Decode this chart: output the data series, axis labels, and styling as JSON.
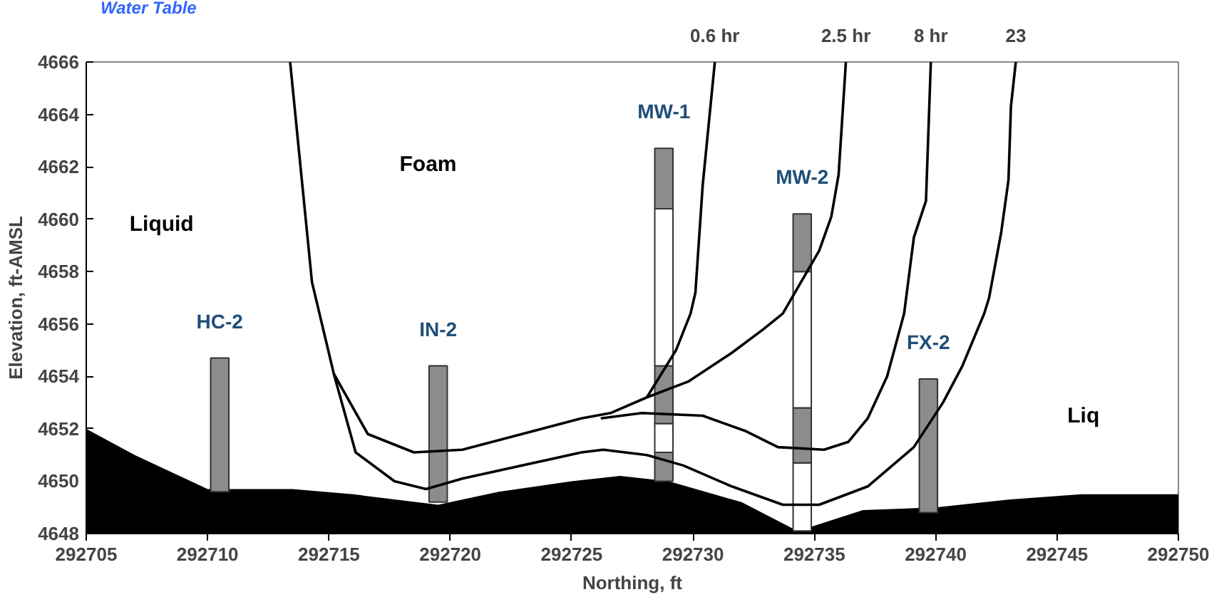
{
  "chart_data": {
    "type": "line",
    "xlabel": "Northing, ft",
    "ylabel": "Elevation, ft-AMSL",
    "xlim": [
      292705,
      292750
    ],
    "xticks": [
      292705,
      292710,
      292715,
      292720,
      292725,
      292730,
      292735,
      292740,
      292745,
      292750
    ],
    "ylim": [
      4648,
      4666
    ],
    "yticks": [
      4648,
      4650,
      4652,
      4654,
      4656,
      4658,
      4660,
      4662,
      4664,
      4666
    ],
    "grid": false,
    "legend": false,
    "marker": "none",
    "line_style": "solid",
    "series": [
      {
        "type": "area",
        "color": "#000000",
        "x": [
          292705,
          292707,
          292710,
          292713.5,
          292716,
          292719.5,
          292722,
          292725,
          292727,
          292729,
          292732,
          292734.3,
          292735,
          292737,
          292740,
          292743,
          292746,
          292750
        ],
        "values": [
          4652.0,
          4651.0,
          4649.7,
          4649.7,
          4649.5,
          4649.1,
          4649.6,
          4650.0,
          4650.2,
          4650.0,
          4649.2,
          4648.1,
          4648.3,
          4648.9,
          4649.0,
          4649.3,
          4649.5,
          4649.5
        ]
      },
      {
        "type": "bar",
        "x": [
          292710.5,
          292719.5,
          292728.8,
          292734.5,
          292739.7
        ],
        "base": [
          4649.6,
          4649.2,
          4650.0,
          4648.1,
          4648.8
        ],
        "values": [
          5.1,
          5.2,
          1.1,
          2.6,
          5.1
        ],
        "colors": [
          "#8c8c8c",
          "#8c8c8c",
          "#8c8c8c",
          "#ffffff",
          "#8c8c8c"
        ],
        "value_labels": [
          "HC-2",
          "IN-2",
          null,
          null,
          "FX-2"
        ]
      },
      {
        "type": "bar",
        "x": [
          292728.8,
          292734.5
        ],
        "base": [
          4651.1,
          4650.7
        ],
        "values": [
          1.1,
          2.1
        ],
        "colors": [
          "#ffffff",
          "#8c8c8c"
        ]
      },
      {
        "type": "bar",
        "x": [
          292728.8,
          292734.5
        ],
        "base": [
          4652.2,
          4652.8
        ],
        "values": [
          2.2,
          5.2
        ],
        "colors": [
          "#8c8c8c",
          "#ffffff"
        ]
      },
      {
        "type": "bar",
        "x": [
          292728.8,
          292734.5
        ],
        "base": [
          4654.4,
          4658.0
        ],
        "values": [
          6.0,
          2.2
        ],
        "colors": [
          "#ffffff",
          "#8c8c8c"
        ],
        "value_labels": [
          null,
          "MW-2"
        ]
      },
      {
        "type": "bar",
        "x": [
          292728.8
        ],
        "base": [
          4660.4
        ],
        "values": [
          2.3
        ],
        "colors": [
          "#8c8c8c"
        ],
        "value_labels": [
          "MW-1"
        ]
      },
      {
        "name": "0.6 hr",
        "color": "#000000",
        "x": [
          292728.1,
          292729.3,
          292729.9,
          292730.1,
          292730.4,
          292730.9
        ],
        "values": [
          4653.2,
          4655.0,
          4656.4,
          4657.2,
          4661.3,
          4666.0
        ]
      },
      {
        "name": "2.5 hr",
        "color": "#000000",
        "x": [
          292713.4,
          292714.3,
          292715.2,
          292716.6,
          292718.5,
          292720.5,
          292725.4,
          292726.6,
          292728.1,
          292729.8,
          292731.6,
          292732.9,
          292733.7,
          292735.2,
          292735.7,
          292736.0,
          292736.3
        ],
        "values": [
          4666.0,
          4657.6,
          4654.1,
          4651.8,
          4651.1,
          4651.2,
          4652.4,
          4652.6,
          4653.2,
          4653.8,
          4654.9,
          4655.8,
          4656.4,
          4658.8,
          4660.1,
          4661.7,
          4666.0
        ]
      },
      {
        "name": "8 hr",
        "color": "#000000",
        "x": [
          292726.2,
          292727.9,
          292730.4,
          292732.2,
          292733.5,
          292735.4,
          292736.4,
          292737.2,
          292738.0,
          292738.7,
          292739.1,
          292739.6,
          292739.8
        ],
        "values": [
          4652.4,
          4652.6,
          4652.5,
          4651.9,
          4651.3,
          4651.2,
          4651.5,
          4652.4,
          4654.0,
          4656.4,
          4659.3,
          4660.7,
          4666.0
        ]
      },
      {
        "name": "23",
        "color": "#000000",
        "x": [
          292715.2,
          292716.1,
          292717.7,
          292719.0,
          292720.5,
          292725.4,
          292726.3,
          292728.1,
          292729.6,
          292731.6,
          292733.7,
          292735.2,
          292737.2,
          292739.1,
          292740.3,
          292741.1,
          292742.0,
          292742.2,
          292742.7,
          292743.0,
          292743.1,
          292743.3
        ],
        "values": [
          4654.1,
          4651.1,
          4650.0,
          4649.7,
          4650.1,
          4651.1,
          4651.2,
          4651.0,
          4650.6,
          4649.8,
          4649.1,
          4649.1,
          4649.8,
          4651.3,
          4653.0,
          4654.4,
          4656.4,
          4657.0,
          4659.5,
          4661.5,
          4664.3,
          4666.0
        ]
      }
    ],
    "annotations": [
      "Water Table",
      "Foam",
      "Liquid",
      "Liq"
    ]
  }
}
